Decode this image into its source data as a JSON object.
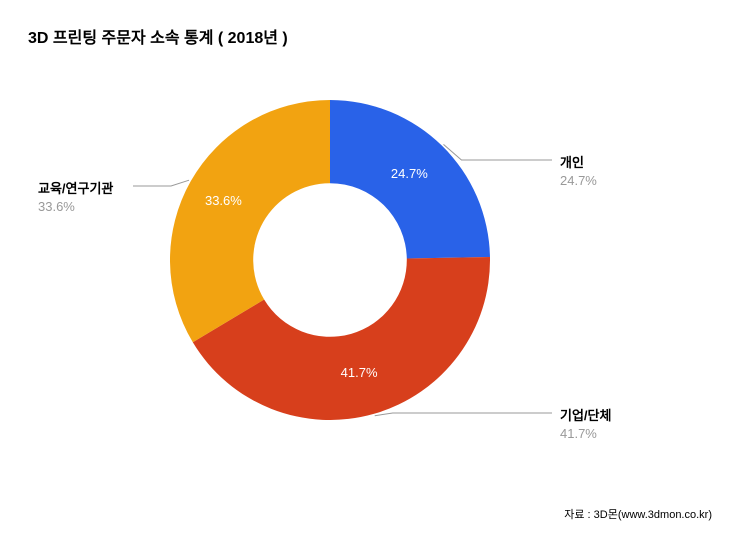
{
  "chart": {
    "type": "donut",
    "title": "3D 프린팅 주문자 소속 통계 ( 2018년 )",
    "title_fontsize": 16,
    "background_color": "#ffffff",
    "inner_radius_ratio": 0.48,
    "slices": [
      {
        "label": "개인",
        "value": 24.7,
        "display": "24.7%",
        "color": "#2962e8"
      },
      {
        "label": "기업/단체",
        "value": 41.7,
        "display": "41.7%",
        "color": "#d73f1c"
      },
      {
        "label": "교육/연구기관",
        "value": 33.6,
        "display": "33.6%",
        "color": "#f2a311"
      }
    ],
    "legend_value_color": "#999999",
    "legend_name_color": "#000000",
    "slice_label_color": "#ffffff",
    "leader_color": "#999999",
    "source": "자료 : 3D몬(www.3dmon.co.kr)"
  }
}
